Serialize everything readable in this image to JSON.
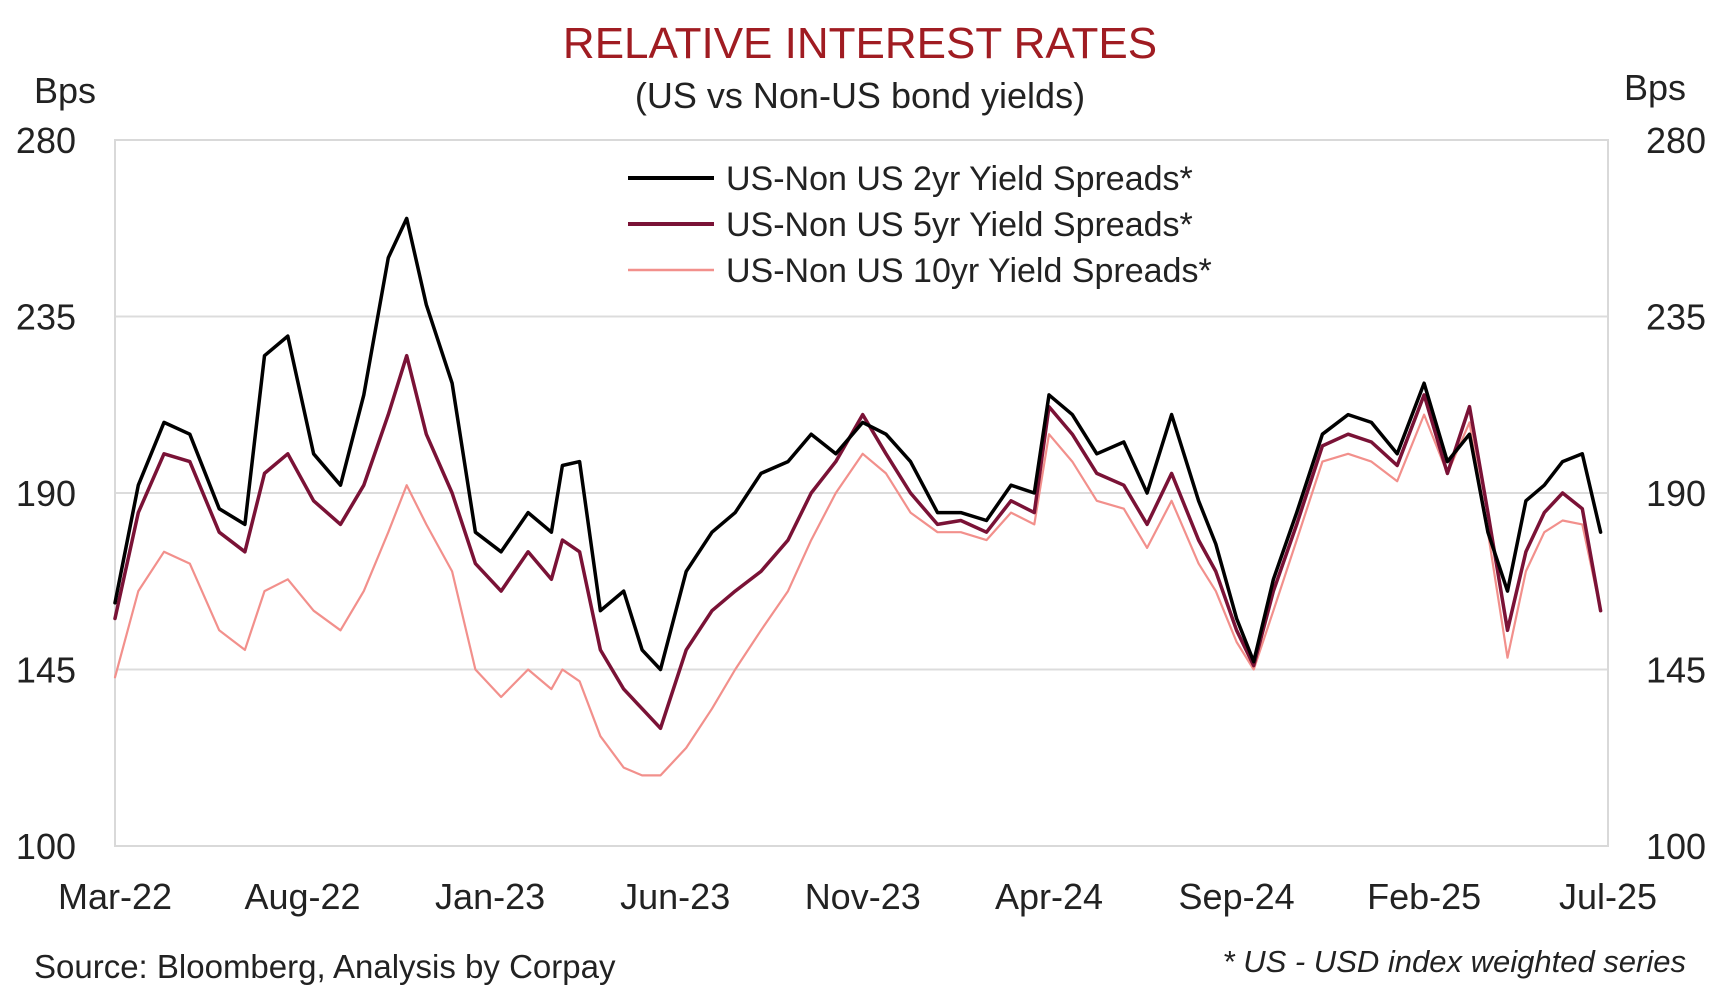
{
  "chart_data": {
    "type": "line",
    "title": "RELATIVE INTEREST RATES",
    "subtitle": "(US vs Non-US bond yields)",
    "y_unit_left": "Bps",
    "y_unit_right": "Bps",
    "ylim": [
      100,
      280
    ],
    "yticks": [
      "280",
      "235",
      "190",
      "145",
      "100"
    ],
    "xlim": [
      "2022-03-01",
      "2025-07-01"
    ],
    "xticks": [
      {
        "date": "2022-03-01",
        "label": "Mar-22"
      },
      {
        "date": "2022-08-01",
        "label": "Aug-22"
      },
      {
        "date": "2023-01-01",
        "label": "Jan-23"
      },
      {
        "date": "2023-06-01",
        "label": "Jun-23"
      },
      {
        "date": "2023-11-01",
        "label": "Nov-23"
      },
      {
        "date": "2024-04-01",
        "label": "Apr-24"
      },
      {
        "date": "2024-09-01",
        "label": "Sep-24"
      },
      {
        "date": "2025-02-01",
        "label": "Feb-25"
      },
      {
        "date": "2025-07-01",
        "label": "Jul-25"
      }
    ],
    "grid": "horizontal",
    "legend_position": "top-center",
    "series": [
      {
        "name": "US-Non US 2yr Yield Spreads*",
        "color": "#000000",
        "x": [
          "2022-03-01",
          "2022-03-20",
          "2022-04-10",
          "2022-05-01",
          "2022-05-25",
          "2022-06-15",
          "2022-07-01",
          "2022-07-20",
          "2022-08-10",
          "2022-09-01",
          "2022-09-20",
          "2022-10-10",
          "2022-10-25",
          "2022-11-10",
          "2022-12-01",
          "2022-12-20",
          "2023-01-10",
          "2023-02-01",
          "2023-02-20",
          "2023-03-01",
          "2023-03-15",
          "2023-04-01",
          "2023-04-20",
          "2023-05-05",
          "2023-05-20",
          "2023-06-10",
          "2023-07-01",
          "2023-07-20",
          "2023-08-10",
          "2023-09-01",
          "2023-09-20",
          "2023-10-10",
          "2023-11-01",
          "2023-11-20",
          "2023-12-10",
          "2024-01-01",
          "2024-01-20",
          "2024-02-10",
          "2024-03-01",
          "2024-03-20",
          "2024-04-01",
          "2024-04-20",
          "2024-05-10",
          "2024-06-01",
          "2024-06-20",
          "2024-07-10",
          "2024-08-01",
          "2024-08-15",
          "2024-09-01",
          "2024-09-15",
          "2024-10-01",
          "2024-10-20",
          "2024-11-10",
          "2024-12-01",
          "2024-12-20",
          "2025-01-10",
          "2025-02-01",
          "2025-02-20",
          "2025-03-10",
          "2025-03-25",
          "2025-04-10",
          "2025-04-25",
          "2025-05-10",
          "2025-05-25",
          "2025-06-10",
          "2025-06-25"
        ],
        "values": [
          162,
          192,
          208,
          205,
          186,
          182,
          225,
          230,
          200,
          192,
          215,
          250,
          260,
          238,
          218,
          180,
          175,
          185,
          180,
          197,
          198,
          160,
          165,
          150,
          145,
          170,
          180,
          185,
          195,
          198,
          205,
          200,
          208,
          205,
          198,
          185,
          185,
          183,
          192,
          190,
          215,
          210,
          200,
          203,
          190,
          210,
          188,
          177,
          158,
          147,
          168,
          185,
          205,
          210,
          208,
          200,
          218,
          198,
          205,
          180,
          165,
          188,
          192,
          198,
          200,
          180
        ]
      },
      {
        "name": "US-Non US 5yr Yield Spreads*",
        "color": "#7a1236",
        "x": [
          "2022-03-01",
          "2022-03-20",
          "2022-04-10",
          "2022-05-01",
          "2022-05-25",
          "2022-06-15",
          "2022-07-01",
          "2022-07-20",
          "2022-08-10",
          "2022-09-01",
          "2022-09-20",
          "2022-10-10",
          "2022-10-25",
          "2022-11-10",
          "2022-12-01",
          "2022-12-20",
          "2023-01-10",
          "2023-02-01",
          "2023-02-20",
          "2023-03-01",
          "2023-03-15",
          "2023-04-01",
          "2023-04-20",
          "2023-05-05",
          "2023-05-20",
          "2023-06-10",
          "2023-07-01",
          "2023-07-20",
          "2023-08-10",
          "2023-09-01",
          "2023-09-20",
          "2023-10-10",
          "2023-11-01",
          "2023-11-20",
          "2023-12-10",
          "2024-01-01",
          "2024-01-20",
          "2024-02-10",
          "2024-03-01",
          "2024-03-20",
          "2024-04-01",
          "2024-04-20",
          "2024-05-10",
          "2024-06-01",
          "2024-06-20",
          "2024-07-10",
          "2024-08-01",
          "2024-08-15",
          "2024-09-01",
          "2024-09-15",
          "2024-10-01",
          "2024-10-20",
          "2024-11-10",
          "2024-12-01",
          "2024-12-20",
          "2025-01-10",
          "2025-02-01",
          "2025-02-20",
          "2025-03-10",
          "2025-03-25",
          "2025-04-10",
          "2025-04-25",
          "2025-05-10",
          "2025-05-25",
          "2025-06-10",
          "2025-06-25"
        ],
        "values": [
          158,
          185,
          200,
          198,
          180,
          175,
          195,
          200,
          188,
          182,
          192,
          210,
          225,
          205,
          190,
          172,
          165,
          175,
          168,
          178,
          175,
          150,
          140,
          135,
          130,
          150,
          160,
          165,
          170,
          178,
          190,
          198,
          210,
          200,
          190,
          182,
          183,
          180,
          188,
          185,
          212,
          205,
          195,
          192,
          182,
          195,
          178,
          170,
          155,
          146,
          165,
          182,
          202,
          205,
          203,
          197,
          215,
          195,
          212,
          185,
          155,
          175,
          185,
          190,
          186,
          160
        ]
      },
      {
        "name": "US-Non US 10yr Yield Spreads*",
        "color": "#f2908c",
        "x": [
          "2022-03-01",
          "2022-03-20",
          "2022-04-10",
          "2022-05-01",
          "2022-05-25",
          "2022-06-15",
          "2022-07-01",
          "2022-07-20",
          "2022-08-10",
          "2022-09-01",
          "2022-09-20",
          "2022-10-10",
          "2022-10-25",
          "2022-11-10",
          "2022-12-01",
          "2022-12-20",
          "2023-01-10",
          "2023-02-01",
          "2023-02-20",
          "2023-03-01",
          "2023-03-15",
          "2023-04-01",
          "2023-04-20",
          "2023-05-05",
          "2023-05-20",
          "2023-06-10",
          "2023-07-01",
          "2023-07-20",
          "2023-08-10",
          "2023-09-01",
          "2023-09-20",
          "2023-10-10",
          "2023-11-01",
          "2023-11-20",
          "2023-12-10",
          "2024-01-01",
          "2024-01-20",
          "2024-02-10",
          "2024-03-01",
          "2024-03-20",
          "2024-04-01",
          "2024-04-20",
          "2024-05-10",
          "2024-06-01",
          "2024-06-20",
          "2024-07-10",
          "2024-08-01",
          "2024-08-15",
          "2024-09-01",
          "2024-09-15",
          "2024-10-01",
          "2024-10-20",
          "2024-11-10",
          "2024-12-01",
          "2024-12-20",
          "2025-01-10",
          "2025-02-01",
          "2025-02-20",
          "2025-03-10",
          "2025-03-25",
          "2025-04-10",
          "2025-04-25",
          "2025-05-10",
          "2025-05-25",
          "2025-06-10",
          "2025-06-25"
        ],
        "values": [
          143,
          165,
          175,
          172,
          155,
          150,
          165,
          168,
          160,
          155,
          165,
          180,
          192,
          182,
          170,
          145,
          138,
          145,
          140,
          145,
          142,
          128,
          120,
          118,
          118,
          125,
          135,
          145,
          155,
          165,
          178,
          190,
          200,
          195,
          185,
          180,
          180,
          178,
          185,
          182,
          205,
          198,
          188,
          186,
          176,
          188,
          172,
          165,
          152,
          145,
          160,
          178,
          198,
          200,
          198,
          193,
          210,
          195,
          208,
          180,
          148,
          170,
          180,
          183,
          182,
          160
        ]
      }
    ]
  },
  "source_text": "Source: Bloomberg, Analysis by Corpay",
  "footnote_text": "* US - USD index weighted series"
}
